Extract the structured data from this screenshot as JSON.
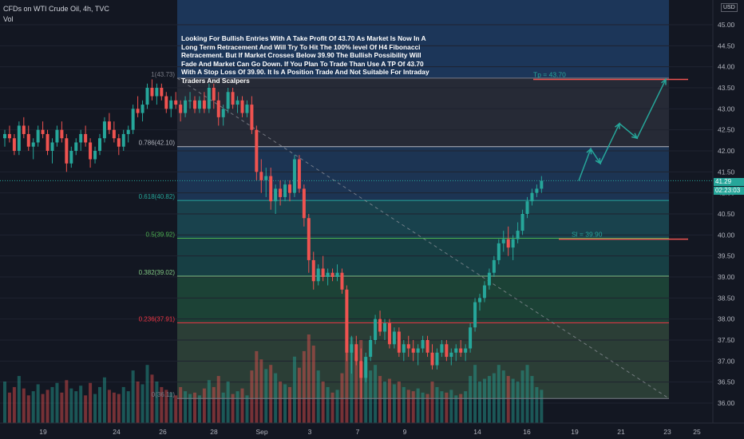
{
  "header": {
    "title": "CFDs on WTI Crude Oil, 4h, TVC",
    "volume_label": "Vol",
    "currency": "USD"
  },
  "annotation": {
    "text": "Looking For Bullish Entries With A Take Profit Of 43.70 As Market Is Now In A Long Term Retracement And Will Try To Hit The 100% level Of H4 Fibonacci Retracement. But If Market Crosses Below 39.90 The Bullish Possibility Will Fade And Market Can Go Down. If You Plan To Trade Than Use A TP Of 43.70 With A Stop Loss Of 39.90. It Is A Position Trade And Not Suitable For Intraday Traders And Scalpers"
  },
  "price_tag": {
    "price": "41.29",
    "countdown": "02:23:03"
  },
  "colors": {
    "up": "#26a69a",
    "down": "#ef5350",
    "background": "#131722",
    "tp": "#ef5350",
    "sl": "#ef5350",
    "projection": "#26a69a"
  },
  "chart_data": {
    "type": "candlestick",
    "yaxis": {
      "min": 36.0,
      "max": 45.0,
      "ticks": [
        "45.00",
        "44.50",
        "44.00",
        "43.50",
        "43.00",
        "42.50",
        "42.00",
        "41.50",
        "41.00",
        "40.50",
        "40.00",
        "39.50",
        "39.00",
        "38.50",
        "38.00",
        "37.50",
        "37.00",
        "36.50",
        "36.00"
      ]
    },
    "xaxis_ticks": [
      "19",
      "24",
      "26",
      "28",
      "Sep",
      "3",
      "7",
      "9",
      "14",
      "16",
      "19",
      "21",
      "23",
      "25"
    ],
    "fibonacci": [
      {
        "label": "1(43.73)",
        "level": 43.73,
        "color": "#787b86"
      },
      {
        "label": "0.786(42.10)",
        "level": 42.1,
        "color": "#b2b5be"
      },
      {
        "label": "0.618(40.82)",
        "level": 40.82,
        "color": "#26a69a"
      },
      {
        "label": "0.5(39.92)",
        "level": 39.92,
        "color": "#4caf50"
      },
      {
        "label": "0.382(39.02)",
        "level": 39.02,
        "color": "#81c784"
      },
      {
        "label": "0.236(37.91)",
        "level": 37.91,
        "color": "#f23645"
      },
      {
        "label": "0(36.11)",
        "level": 36.11,
        "color": "#787b86"
      }
    ],
    "take_profit": {
      "label": "Tp = 43.70",
      "value": 43.7
    },
    "stop_loss": {
      "label": "Sl = 39.90",
      "value": 39.9
    },
    "current_price": 41.29,
    "projection": [
      41.29,
      42.05,
      41.7,
      42.65,
      42.3,
      43.7
    ],
    "candles": [
      [
        42.3,
        42.5,
        42.1,
        42.4,
        300
      ],
      [
        42.4,
        42.6,
        42.2,
        42.3,
        220
      ],
      [
        42.3,
        42.4,
        41.9,
        42.0,
        260
      ],
      [
        42.0,
        42.7,
        41.9,
        42.6,
        340
      ],
      [
        42.6,
        42.8,
        42.3,
        42.4,
        250
      ],
      [
        42.4,
        42.6,
        42.0,
        42.1,
        200
      ],
      [
        42.1,
        42.3,
        41.8,
        42.2,
        230
      ],
      [
        42.2,
        42.6,
        42.1,
        42.5,
        280
      ],
      [
        42.5,
        42.7,
        42.3,
        42.4,
        210
      ],
      [
        42.4,
        42.5,
        41.9,
        42.0,
        240
      ],
      [
        42.0,
        42.3,
        41.7,
        42.2,
        260
      ],
      [
        42.2,
        42.6,
        42.1,
        42.5,
        290
      ],
      [
        42.5,
        42.7,
        42.2,
        42.3,
        220
      ],
      [
        42.3,
        42.4,
        41.5,
        41.7,
        310
      ],
      [
        41.7,
        42.1,
        41.6,
        42.0,
        250
      ],
      [
        42.0,
        42.3,
        41.9,
        42.2,
        230
      ],
      [
        42.2,
        42.5,
        42.0,
        42.4,
        270
      ],
      [
        42.4,
        42.6,
        42.1,
        42.2,
        200
      ],
      [
        42.2,
        42.3,
        41.6,
        41.8,
        290
      ],
      [
        41.8,
        42.1,
        41.7,
        42.0,
        210
      ],
      [
        42.0,
        42.4,
        41.9,
        42.3,
        260
      ],
      [
        42.3,
        42.8,
        42.2,
        42.7,
        330
      ],
      [
        42.7,
        42.9,
        42.4,
        42.5,
        240
      ],
      [
        42.5,
        42.7,
        42.2,
        42.3,
        220
      ],
      [
        42.3,
        42.4,
        41.9,
        42.1,
        210
      ],
      [
        42.1,
        42.5,
        42.0,
        42.4,
        260
      ],
      [
        42.4,
        42.6,
        42.2,
        42.5,
        230
      ],
      [
        42.5,
        43.1,
        42.4,
        43.0,
        380
      ],
      [
        43.0,
        43.3,
        42.8,
        42.9,
        300
      ],
      [
        42.9,
        43.2,
        42.7,
        43.1,
        280
      ],
      [
        43.1,
        43.6,
        43.0,
        43.5,
        420
      ],
      [
        43.5,
        43.7,
        43.2,
        43.3,
        350
      ],
      [
        43.3,
        43.6,
        43.1,
        43.5,
        300
      ],
      [
        43.5,
        43.6,
        43.2,
        43.3,
        260
      ],
      [
        43.3,
        43.4,
        42.9,
        43.0,
        240
      ],
      [
        43.0,
        43.3,
        42.8,
        43.2,
        220
      ],
      [
        43.2,
        43.4,
        43.0,
        43.1,
        200
      ],
      [
        43.1,
        43.2,
        42.7,
        42.9,
        260
      ],
      [
        42.9,
        43.3,
        42.8,
        43.2,
        230
      ],
      [
        43.2,
        43.4,
        43.0,
        43.2,
        210
      ],
      [
        43.2,
        43.3,
        42.9,
        43.0,
        220
      ],
      [
        43.0,
        43.3,
        42.9,
        43.2,
        200
      ],
      [
        43.2,
        43.4,
        42.9,
        43.0,
        250
      ],
      [
        43.0,
        43.6,
        42.9,
        43.5,
        310
      ],
      [
        43.5,
        43.6,
        43.0,
        43.2,
        260
      ],
      [
        43.2,
        43.4,
        42.6,
        42.8,
        340
      ],
      [
        42.8,
        43.1,
        42.6,
        43.0,
        220
      ],
      [
        43.0,
        43.5,
        42.9,
        43.4,
        300
      ],
      [
        43.4,
        43.5,
        43.0,
        43.1,
        210
      ],
      [
        43.1,
        43.3,
        42.9,
        43.2,
        230
      ],
      [
        43.2,
        43.3,
        42.8,
        42.9,
        250
      ],
      [
        42.9,
        43.2,
        42.8,
        43.1,
        200
      ],
      [
        43.1,
        43.3,
        42.4,
        42.5,
        380
      ],
      [
        42.5,
        42.6,
        41.3,
        41.5,
        520
      ],
      [
        41.5,
        41.8,
        41.0,
        41.3,
        460
      ],
      [
        41.3,
        41.6,
        40.9,
        41.4,
        390
      ],
      [
        41.4,
        41.6,
        40.6,
        40.8,
        420
      ],
      [
        40.8,
        41.2,
        40.5,
        41.1,
        360
      ],
      [
        41.1,
        41.3,
        40.7,
        40.9,
        300
      ],
      [
        40.9,
        41.3,
        40.8,
        41.2,
        280
      ],
      [
        41.2,
        41.3,
        40.8,
        41.0,
        260
      ],
      [
        41.0,
        41.9,
        40.9,
        41.8,
        480
      ],
      [
        41.8,
        41.9,
        41.0,
        41.1,
        400
      ],
      [
        41.1,
        41.2,
        40.2,
        40.4,
        520
      ],
      [
        40.4,
        40.5,
        39.1,
        39.4,
        640
      ],
      [
        39.4,
        39.6,
        38.7,
        38.9,
        560
      ],
      [
        38.9,
        39.3,
        38.8,
        39.2,
        380
      ],
      [
        39.2,
        39.5,
        38.9,
        39.0,
        300
      ],
      [
        39.0,
        39.2,
        38.8,
        39.1,
        260
      ],
      [
        39.1,
        39.2,
        38.9,
        39.0,
        220
      ],
      [
        39.0,
        39.3,
        38.9,
        39.1,
        240
      ],
      [
        39.1,
        39.2,
        38.6,
        38.7,
        360
      ],
      [
        38.7,
        38.8,
        37.0,
        37.2,
        700
      ],
      [
        37.2,
        37.6,
        36.7,
        37.4,
        620
      ],
      [
        37.4,
        37.6,
        36.9,
        37.0,
        480
      ],
      [
        37.0,
        37.3,
        36.1,
        36.6,
        600
      ],
      [
        36.6,
        37.2,
        36.5,
        37.1,
        440
      ],
      [
        37.1,
        37.6,
        37.0,
        37.5,
        380
      ],
      [
        37.5,
        38.1,
        37.4,
        38.0,
        420
      ],
      [
        38.0,
        38.2,
        37.6,
        37.7,
        340
      ],
      [
        37.7,
        38.0,
        37.5,
        37.9,
        300
      ],
      [
        37.9,
        38.0,
        37.3,
        37.4,
        320
      ],
      [
        37.4,
        37.8,
        37.3,
        37.7,
        280
      ],
      [
        37.7,
        37.8,
        37.1,
        37.2,
        300
      ],
      [
        37.2,
        37.5,
        37.0,
        37.4,
        260
      ],
      [
        37.4,
        37.6,
        37.1,
        37.3,
        240
      ],
      [
        37.3,
        37.5,
        37.0,
        37.2,
        230
      ],
      [
        37.2,
        37.4,
        36.9,
        37.3,
        250
      ],
      [
        37.3,
        37.6,
        37.2,
        37.5,
        220
      ],
      [
        37.5,
        37.6,
        37.1,
        37.2,
        210
      ],
      [
        37.2,
        37.4,
        36.8,
        36.9,
        300
      ],
      [
        36.9,
        37.3,
        36.8,
        37.2,
        260
      ],
      [
        37.2,
        37.5,
        37.1,
        37.4,
        230
      ],
      [
        37.4,
        37.5,
        37.0,
        37.1,
        220
      ],
      [
        37.1,
        37.3,
        36.9,
        37.2,
        240
      ],
      [
        37.2,
        37.4,
        37.0,
        37.3,
        200
      ],
      [
        37.3,
        37.5,
        37.1,
        37.2,
        210
      ],
      [
        37.2,
        37.4,
        37.0,
        37.3,
        230
      ],
      [
        37.3,
        37.9,
        37.2,
        37.8,
        340
      ],
      [
        37.8,
        38.5,
        37.7,
        38.4,
        420
      ],
      [
        38.4,
        38.6,
        38.2,
        38.5,
        300
      ],
      [
        38.5,
        38.9,
        38.4,
        38.8,
        320
      ],
      [
        38.8,
        39.2,
        38.7,
        39.1,
        340
      ],
      [
        39.1,
        39.5,
        39.0,
        39.4,
        360
      ],
      [
        39.4,
        39.9,
        39.3,
        39.8,
        420
      ],
      [
        39.8,
        40.1,
        39.6,
        39.9,
        380
      ],
      [
        39.9,
        40.2,
        39.5,
        39.7,
        340
      ],
      [
        39.7,
        40.0,
        39.4,
        39.9,
        320
      ],
      [
        39.9,
        40.3,
        39.8,
        40.1,
        300
      ],
      [
        40.1,
        40.6,
        40.0,
        40.5,
        380
      ],
      [
        40.5,
        40.9,
        40.4,
        40.8,
        420
      ],
      [
        40.8,
        41.1,
        40.7,
        41.0,
        340
      ],
      [
        41.0,
        41.2,
        40.9,
        41.1,
        260
      ],
      [
        41.1,
        41.4,
        41.0,
        41.29,
        240
      ]
    ]
  }
}
